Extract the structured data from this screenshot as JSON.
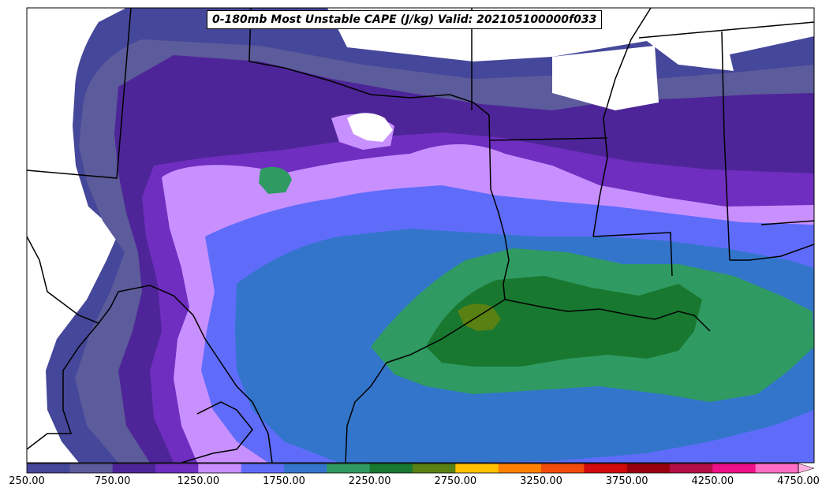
{
  "map": {
    "title": "0-180mb Most Unstable CAPE (J/kg) Valid: 202105100000f033",
    "variable": "Most Unstable CAPE",
    "units": "J/kg",
    "layer": "0-180mb",
    "valid_time": "202105100000",
    "forecast_hour": "f033",
    "region": "South-central United States / western Gulf of Mexico",
    "colors": {
      "background": "#ffffff",
      "border": "#000000"
    }
  },
  "colorbar": {
    "extend": "max",
    "labels": [
      "250.00",
      "750.00",
      "1250.00",
      "1750.00",
      "2250.00",
      "2750.00",
      "3250.00",
      "3750.00",
      "4250.00",
      "4750.00"
    ],
    "bins": [
      {
        "min": 250,
        "max": 500,
        "color": "#45479a"
      },
      {
        "min": 500,
        "max": 750,
        "color": "#5c5b9b"
      },
      {
        "min": 750,
        "max": 1000,
        "color": "#4e2598"
      },
      {
        "min": 1000,
        "max": 1250,
        "color": "#6f2ec0"
      },
      {
        "min": 1250,
        "max": 1500,
        "color": "#c890ff"
      },
      {
        "min": 1500,
        "max": 1750,
        "color": "#5f6cfa"
      },
      {
        "min": 1750,
        "max": 2000,
        "color": "#3375cb"
      },
      {
        "min": 2000,
        "max": 2250,
        "color": "#2f9a62"
      },
      {
        "min": 2250,
        "max": 2500,
        "color": "#18782f"
      },
      {
        "min": 2500,
        "max": 2750,
        "color": "#588013"
      },
      {
        "min": 2750,
        "max": 3000,
        "color": "#ffc000"
      },
      {
        "min": 3000,
        "max": 3250,
        "color": "#ff8000"
      },
      {
        "min": 3250,
        "max": 3500,
        "color": "#f24b0a"
      },
      {
        "min": 3500,
        "max": 3750,
        "color": "#d10b0b"
      },
      {
        "min": 3750,
        "max": 4000,
        "color": "#99000f"
      },
      {
        "min": 4000,
        "max": 4250,
        "color": "#b30e45"
      },
      {
        "min": 4250,
        "max": 4500,
        "color": "#ee1087"
      },
      {
        "min": 4500,
        "max": 4750,
        "color": "#ff6ec4"
      },
      {
        "min": 4750,
        "max": null,
        "color": "#ffb0e0"
      }
    ]
  }
}
